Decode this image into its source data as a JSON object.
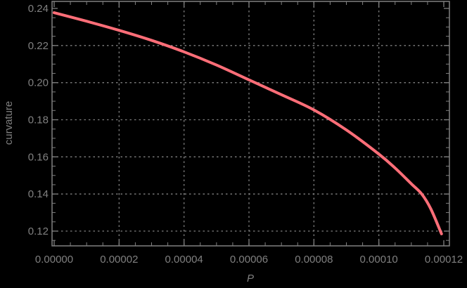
{
  "chart_data": {
    "type": "line",
    "title": "",
    "xlabel": "P",
    "ylabel": "curvature",
    "xlim": [
      0,
      0.00012
    ],
    "ylim": [
      0.113,
      0.242
    ],
    "grid": true,
    "legend": null,
    "x_ticks": [
      "0.00000",
      "0.00002",
      "0.00004",
      "0.00006",
      "0.00008",
      "0.00010",
      "0.00012"
    ],
    "y_ticks": [
      "0.12",
      "0.14",
      "0.16",
      "0.18",
      "0.20",
      "0.22",
      "0.24"
    ],
    "series": [
      {
        "name": "curvature",
        "color": "#ff6e78",
        "x": [
          0,
          1e-05,
          2e-05,
          3e-05,
          4e-05,
          5e-05,
          6e-05,
          7e-05,
          8e-05,
          9e-05,
          0.0001,
          0.000105,
          0.00011,
          0.0001132,
          0.000116,
          0.0001193
        ],
        "y": [
          0.2377,
          0.2331,
          0.2282,
          0.2228,
          0.2166,
          0.2095,
          0.2015,
          0.1935,
          0.1853,
          0.1745,
          0.1615,
          0.154,
          0.1455,
          0.14,
          0.132,
          0.1185
        ]
      }
    ]
  },
  "colors": {
    "background": "#000000",
    "axis": "#808080",
    "grid": "#808080",
    "curve": "#ff6e78"
  }
}
